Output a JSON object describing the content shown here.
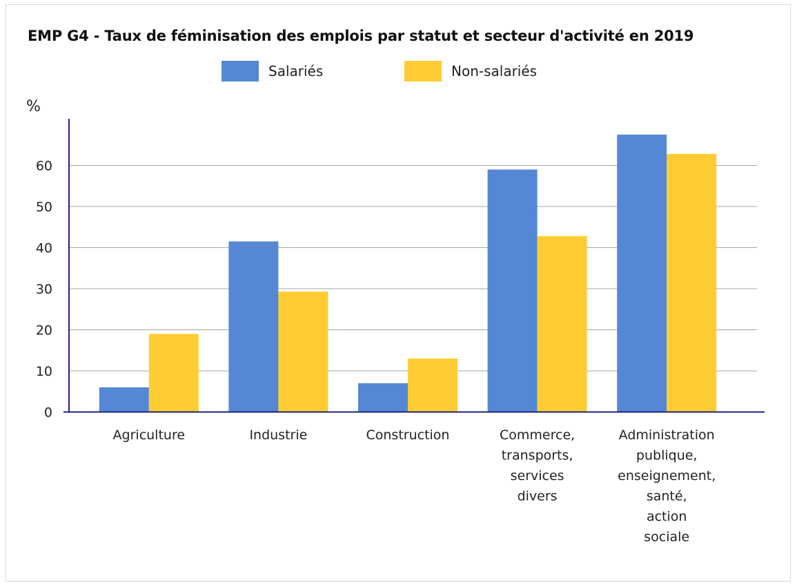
{
  "chart_data": {
    "type": "bar",
    "title": "EMP G4 - Taux de féminisation des emplois par statut et secteur d'activité en 2019",
    "ylabel": "%",
    "xlabel": "",
    "ylim": [
      0,
      70
    ],
    "yticks": [
      0,
      10,
      20,
      30,
      40,
      50,
      60
    ],
    "grid": true,
    "legend_position": "top",
    "categories": [
      [
        "Agriculture"
      ],
      [
        "Industrie"
      ],
      [
        "Construction"
      ],
      [
        "Commerce,",
        "transports,",
        "services",
        "divers"
      ],
      [
        "Administration",
        "publique,",
        "enseignement,",
        "santé,",
        "action",
        "sociale"
      ]
    ],
    "series": [
      {
        "name": "Salariés",
        "color": "#5588d4",
        "values": [
          6,
          41.5,
          7,
          59,
          67.5
        ]
      },
      {
        "name": "Non-salariés",
        "color": "#ffcd33",
        "values": [
          19,
          29.3,
          13,
          42.8,
          62.8
        ]
      }
    ],
    "colors": {
      "axis": "#1a237e",
      "grid": "#a6a6a6"
    }
  }
}
